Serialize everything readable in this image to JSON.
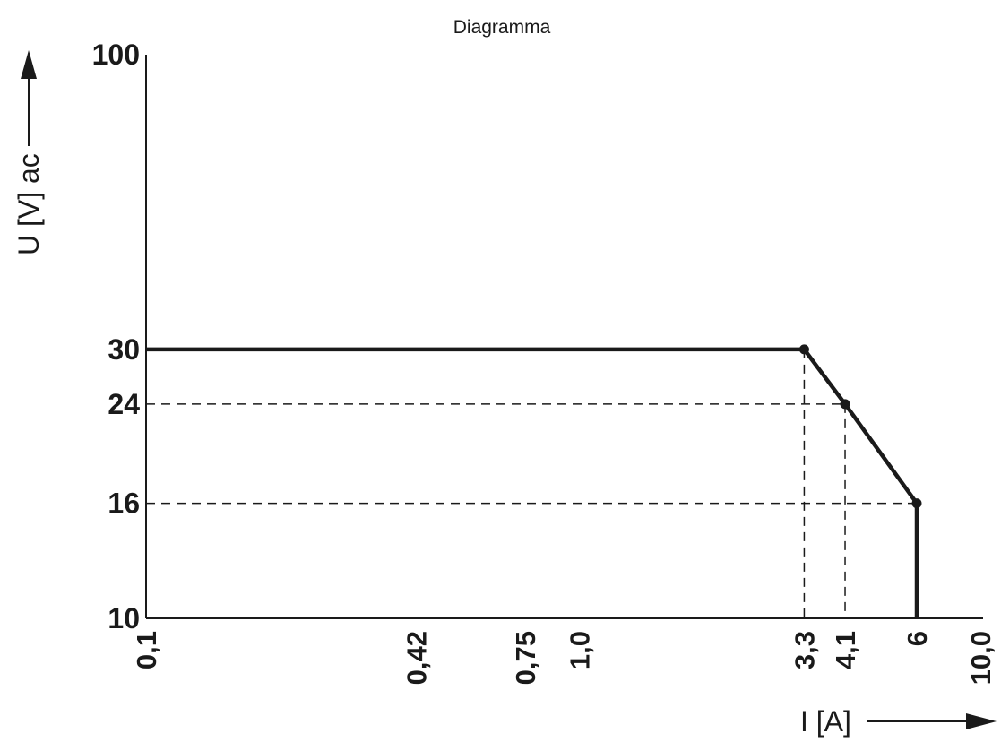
{
  "chart_data": {
    "type": "line",
    "title": "Diagramma",
    "xlabel": "I [A]",
    "ylabel": "U [V] ac",
    "xscale": "log",
    "yscale": "log",
    "xlim": [
      0.1,
      10.0
    ],
    "ylim": [
      10,
      100
    ],
    "x_tick_labels": [
      "0,1",
      "0,42",
      "0,75",
      "1,0",
      "3,3",
      "4,1",
      "6",
      "10,0"
    ],
    "x_tick_values": [
      0.1,
      0.42,
      0.75,
      1.0,
      3.3,
      4.1,
      6,
      10.0
    ],
    "y_tick_labels": [
      "10",
      "16",
      "24",
      "30",
      "100"
    ],
    "y_tick_values": [
      10,
      16,
      24,
      30,
      100
    ],
    "series": [
      {
        "x": [
          0.1,
          3.3,
          4.1,
          6,
          6
        ],
        "y": [
          30,
          30,
          24,
          16,
          10
        ]
      }
    ],
    "markers": [
      {
        "x": 3.3,
        "y": 30
      },
      {
        "x": 4.1,
        "y": 24
      },
      {
        "x": 6,
        "y": 16
      }
    ],
    "reference_lines": [
      {
        "from": {
          "x": 3.3,
          "y": 30
        },
        "to": {
          "x": 3.3,
          "y": 10
        }
      },
      {
        "from": {
          "x": 0.1,
          "y": 24
        },
        "to": {
          "x": 4.1,
          "y": 24
        }
      },
      {
        "from": {
          "x": 4.1,
          "y": 24
        },
        "to": {
          "x": 4.1,
          "y": 10
        }
      },
      {
        "from": {
          "x": 0.1,
          "y": 16
        },
        "to": {
          "x": 6,
          "y": 16
        }
      }
    ],
    "grid": false,
    "legend": "none",
    "colors": {
      "line": "#1a1a1a",
      "reference": "#1a1a1a",
      "axis": "#1a1a1a"
    }
  }
}
